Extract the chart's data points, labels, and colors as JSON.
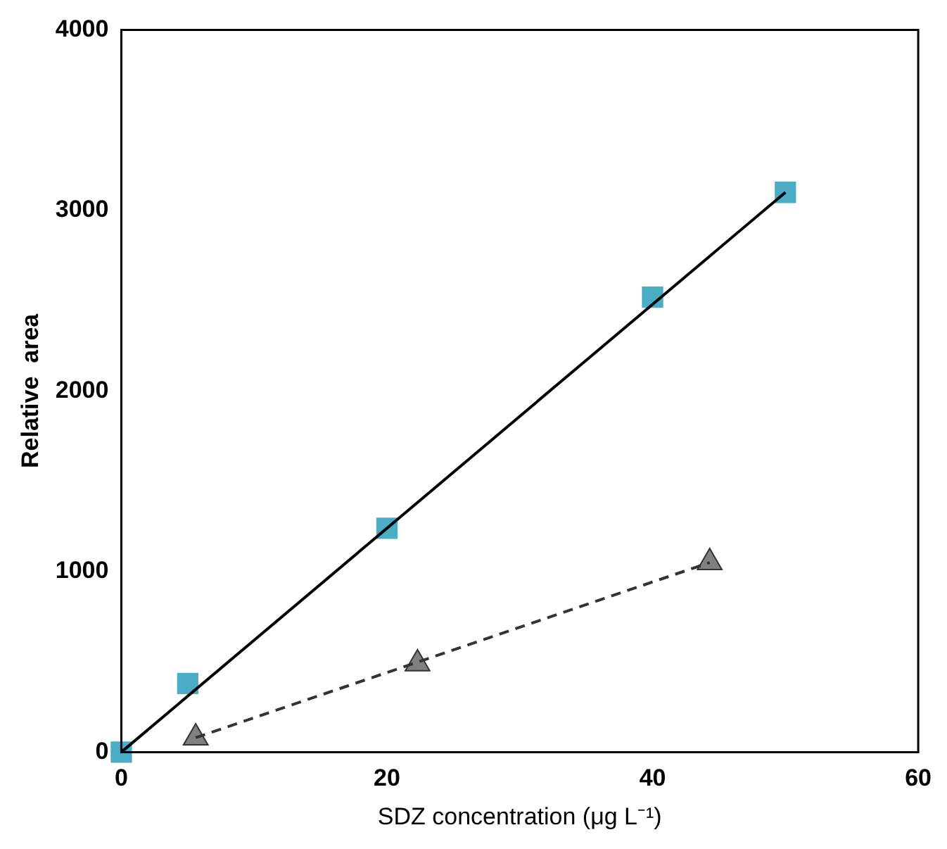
{
  "chart_data": {
    "type": "scatter",
    "xlabel": "SDZ concentration (μg L⁻¹)",
    "ylabel": "Relative  area",
    "xlim": [
      0,
      60
    ],
    "ylim": [
      0,
      4000
    ],
    "xticks": [
      0,
      20,
      40,
      60
    ],
    "yticks": [
      0,
      1000,
      2000,
      3000,
      4000
    ],
    "series": [
      {
        "type": "line",
        "color": "#000000",
        "marker": "none",
        "line_style": "solid",
        "x": [
          0,
          50
        ],
        "values": [
          0,
          3100
        ]
      },
      {
        "type": "line",
        "color": "#333333",
        "marker": "none",
        "line_style": "dashed",
        "x": [
          5.6,
          44.3
        ],
        "values": [
          80,
          1050
        ]
      },
      {
        "color": "#4bacc6",
        "marker": "square",
        "x": [
          0,
          5,
          20,
          40,
          50
        ],
        "values": [
          0,
          380,
          1240,
          2520,
          3100
        ]
      },
      {
        "color": "#808080",
        "marker": "triangle",
        "x": [
          5.6,
          22.3,
          44.3
        ],
        "values": [
          80,
          490,
          1050
        ]
      }
    ]
  }
}
